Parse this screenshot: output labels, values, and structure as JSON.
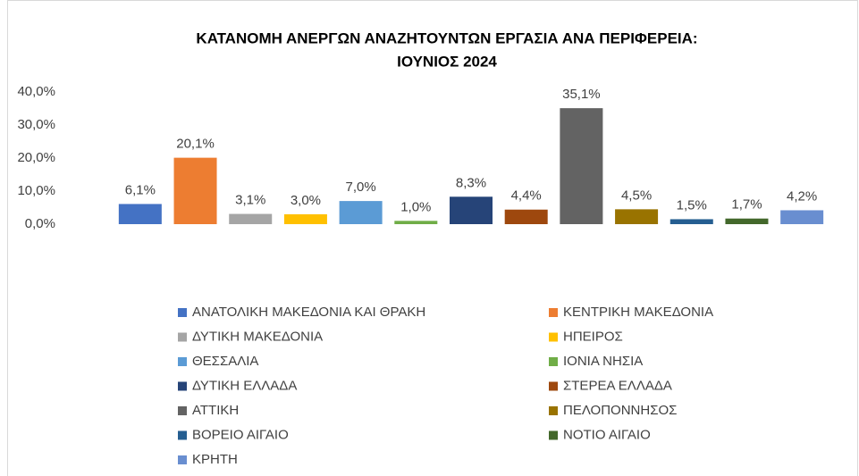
{
  "chart_data": {
    "type": "bar",
    "title": [
      "ΚΑΤΑΝΟΜΗ ΑΝΕΡΓΩΝ ΑΝΑΖΗΤΟΥΝΤΩΝ ΕΡΓΑΣΙΑ ΑΝΑ ΠΕΡΙΦΕΡΕΙΑ:",
      "ΙΟΥΝΙΟΣ 2024"
    ],
    "categories": [
      "ΑΝΑΤΟΛΙΚΗ ΜΑΚΕΔΟΝΙΑ ΚΑΙ ΘΡΑΚΗ",
      "ΚΕΝΤΡΙΚΗ ΜΑΚΕΔΟΝΙΑ",
      "ΔΥΤΙΚΗ ΜΑΚΕΔΟΝΙΑ",
      "ΗΠΕΙΡΟΣ",
      "ΘΕΣΣΑΛΙΑ",
      "ΙΟΝΙΑ ΝΗΣΙΑ",
      "ΔΥΤΙΚΗ ΕΛΛΑΔΑ",
      "ΣΤΕΡΕΑ ΕΛΛΑΔΑ",
      "ΑΤΤΙΚΗ",
      "ΠΕΛΟΠΟΝΝΗΣΟΣ",
      "ΒΟΡΕΙΟ ΑΙΓΑΙΟ",
      "ΝΟΤΙΟ ΑΙΓΑΙΟ",
      "ΚΡΗΤΗ"
    ],
    "values": [
      6.1,
      20.1,
      3.1,
      3.0,
      7.0,
      1.0,
      8.3,
      4.4,
      35.1,
      4.5,
      1.5,
      1.7,
      4.2
    ],
    "value_labels": [
      "6,1%",
      "20,1%",
      "3,1%",
      "3,0%",
      "7,0%",
      "1,0%",
      "8,3%",
      "4,4%",
      "35,1%",
      "4,5%",
      "1,5%",
      "1,7%",
      "4,2%"
    ],
    "colors": [
      "#4472c4",
      "#ed7d31",
      "#a5a5a5",
      "#ffc000",
      "#5b9bd5",
      "#70ad47",
      "#264478",
      "#9e480e",
      "#636363",
      "#997300",
      "#255e91",
      "#43682b",
      "#698ed0"
    ],
    "ylim": [
      0,
      40
    ],
    "yticks": [
      {
        "value": 0,
        "label": "0,0%"
      },
      {
        "value": 10,
        "label": "10,0%"
      },
      {
        "value": 20,
        "label": "20,0%"
      },
      {
        "value": 30,
        "label": "30,0%"
      },
      {
        "value": 40,
        "label": "40,0%"
      }
    ],
    "grid": false,
    "legend": "bottom"
  }
}
